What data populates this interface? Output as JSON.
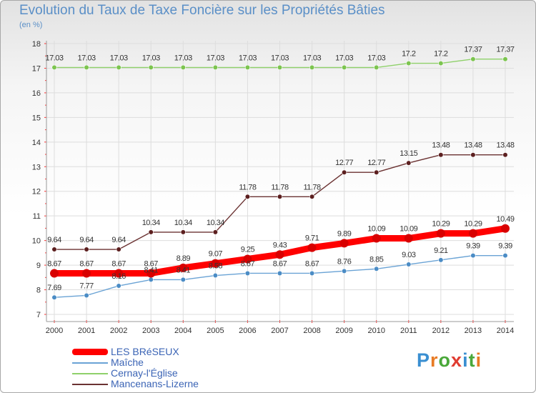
{
  "title": "Evolution du Taux de Taxe Foncière sur les Propriétés Bâties",
  "unit": "(en %)",
  "logo_text": "Proxiti",
  "chart_data": {
    "type": "line",
    "title": "Evolution du Taux de Taxe Foncière sur les Propriétés Bâties",
    "ylabel": "(en %)",
    "xlabel": "",
    "x": [
      "2000",
      "2001",
      "2002",
      "2003",
      "2004",
      "2005",
      "2006",
      "2007",
      "2008",
      "2009",
      "2010",
      "2011",
      "2012",
      "2013",
      "2014"
    ],
    "ylim": [
      7,
      18
    ],
    "y_ticks": [
      "7",
      "8",
      "9",
      "10",
      "11",
      "12",
      "13",
      "14",
      "15",
      "16",
      "17",
      "18"
    ],
    "grid": true,
    "legend_position": "bottom-left",
    "series": [
      {
        "name": "Cernay-l'Église",
        "color": "#8fd16a",
        "point_color": "#7cc44f",
        "values": [
          17.03,
          17.03,
          17.03,
          17.03,
          17.03,
          17.03,
          17.03,
          17.03,
          17.03,
          17.03,
          17.03,
          17.2,
          17.2,
          17.37,
          17.37
        ],
        "labels": [
          "17.03",
          "17.03",
          "17.03",
          "17.03",
          "17.03",
          "17.03",
          "17.03",
          "17.03",
          "17.03",
          "17.03",
          "17.03",
          "17.2",
          "17.2",
          "17.37",
          "17.37"
        ]
      },
      {
        "name": "Mancenans-Lizerne",
        "color": "#6b3232",
        "point_color": "#5c1f1f",
        "values": [
          9.64,
          9.64,
          9.64,
          10.34,
          10.34,
          10.34,
          11.78,
          11.78,
          11.78,
          12.77,
          12.77,
          13.15,
          13.48,
          13.48,
          13.48
        ],
        "labels": [
          "9.64",
          "9.64",
          "9.64",
          "10.34",
          "10.34",
          "10.34",
          "11.78",
          "11.78",
          "11.78",
          "12.77",
          "12.77",
          "13.15",
          "13.48",
          "13.48",
          "13.48"
        ]
      },
      {
        "name": "Maîche",
        "color": "#6aa3d5",
        "point_color": "#4b8cc5",
        "values": [
          7.69,
          7.77,
          8.16,
          8.41,
          8.41,
          8.58,
          8.67,
          8.67,
          8.67,
          8.76,
          8.85,
          9.03,
          9.21,
          9.39,
          9.39
        ],
        "labels": [
          "7.69",
          "7.77",
          "8.16",
          "8.41",
          "8.41",
          "8.58",
          "8.67",
          "8.67",
          "8.67",
          "8.76",
          "8.85",
          "9.03",
          "9.21",
          "9.39",
          "9.39"
        ]
      },
      {
        "name": "LES BRéSEUX",
        "color": "#ff0000",
        "point_color": "#d80000",
        "values": [
          8.67,
          8.67,
          8.67,
          8.67,
          8.89,
          9.07,
          9.25,
          9.43,
          9.71,
          9.89,
          10.09,
          10.09,
          10.29,
          10.29,
          10.49
        ],
        "labels": [
          "8.67",
          "8.67",
          "8.67",
          "8.67",
          "8.89",
          "9.07",
          "9.25",
          "9.43",
          "9.71",
          "9.89",
          "10.09",
          "10.09",
          "10.29",
          "10.29",
          "10.49"
        ]
      }
    ],
    "legend": [
      "LES BRéSEUX",
      "Maîche",
      "Cernay-l'Église",
      "Mancenans-Lizerne"
    ]
  }
}
